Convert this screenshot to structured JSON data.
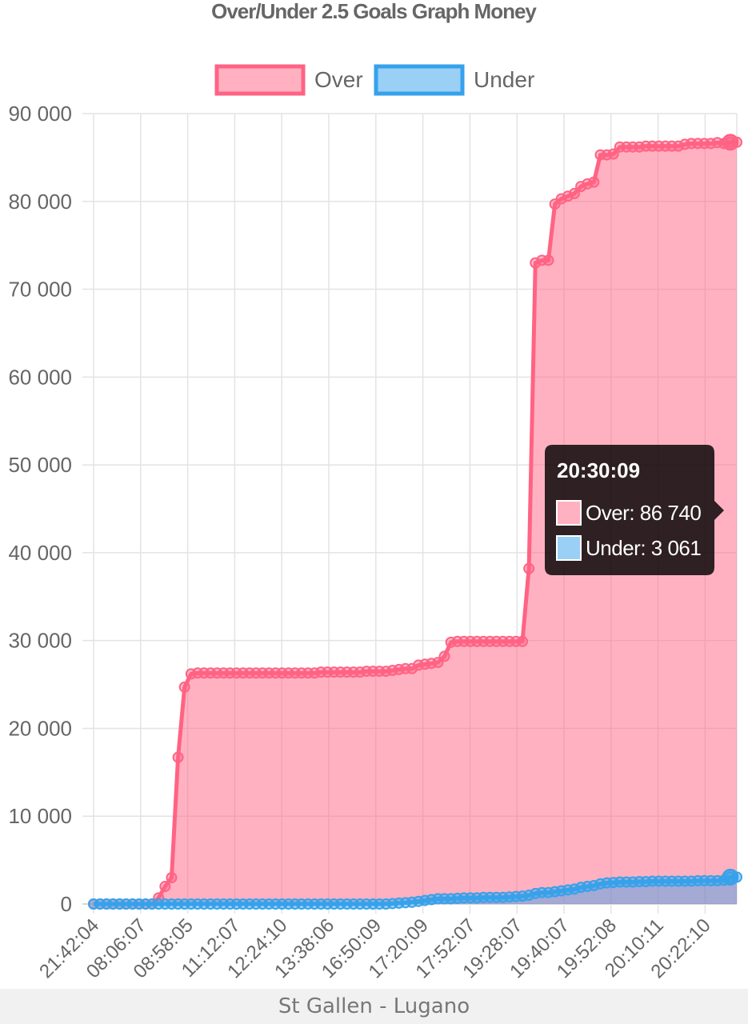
{
  "chart_data": {
    "type": "area",
    "title": "Over/Under 2.5 Goals Graph Money",
    "y_tick_labels": [
      "0",
      "10 000",
      "20 000",
      "30 000",
      "40 000",
      "50 000",
      "60 000",
      "70 000",
      "80 000",
      "90 000"
    ],
    "x_tick_labels": [
      "21:42:04",
      "08:06:07",
      "08:58:05",
      "11:12:07",
      "12:24:10",
      "13:38:06",
      "16:50:09",
      "17:20:09",
      "17:52:07",
      "19:28:07",
      "19:40:07",
      "19:52:08",
      "20:10:11",
      "20:22:10"
    ],
    "ylim": [
      0,
      90000
    ],
    "grid": true,
    "legend_position": "top",
    "series": [
      {
        "name": "Over",
        "color": "#ff6384",
        "values": [
          0,
          0,
          0,
          0,
          0,
          0,
          0,
          0,
          0,
          0,
          700,
          2000,
          3000,
          16700,
          24700,
          26200,
          26300,
          26300,
          26300,
          26300,
          26300,
          26300,
          26300,
          26300,
          26300,
          26300,
          26300,
          26300,
          26300,
          26300,
          26300,
          26300,
          26300,
          26300,
          26300,
          26400,
          26400,
          26400,
          26400,
          26400,
          26400,
          26400,
          26500,
          26500,
          26500,
          26500,
          26600,
          26700,
          26800,
          26800,
          27200,
          27300,
          27400,
          27500,
          28200,
          29800,
          29900,
          29900,
          29900,
          29900,
          29900,
          29900,
          29900,
          29900,
          29900,
          29900,
          29900,
          38200,
          73000,
          73300,
          73300,
          79700,
          80300,
          80600,
          80900,
          81700,
          82000,
          82200,
          85300,
          85300,
          85400,
          86200,
          86200,
          86200,
          86200,
          86300,
          86300,
          86300,
          86300,
          86300,
          86300,
          86500,
          86600,
          86600,
          86600,
          86600,
          86700,
          86600,
          86740,
          86740
        ]
      },
      {
        "name": "Under",
        "color": "#36a2eb",
        "values": [
          0,
          0,
          0,
          0,
          0,
          0,
          0,
          0,
          0,
          0,
          0,
          0,
          0,
          0,
          0,
          0,
          0,
          0,
          0,
          0,
          0,
          0,
          0,
          0,
          0,
          0,
          0,
          0,
          0,
          0,
          0,
          0,
          0,
          0,
          0,
          0,
          0,
          0,
          0,
          0,
          0,
          0,
          0,
          0,
          0,
          0,
          50,
          100,
          150,
          200,
          300,
          400,
          500,
          600,
          600,
          600,
          650,
          700,
          700,
          700,
          750,
          750,
          750,
          750,
          800,
          850,
          900,
          1000,
          1200,
          1300,
          1300,
          1400,
          1500,
          1600,
          1700,
          1900,
          2000,
          2100,
          2300,
          2400,
          2450,
          2500,
          2500,
          2500,
          2550,
          2550,
          2600,
          2600,
          2600,
          2600,
          2600,
          2600,
          2600,
          2650,
          2650,
          2650,
          2650,
          2700,
          3061,
          3061
        ]
      }
    ],
    "tooltip": {
      "title": "20:30:09",
      "over_label": "Over: 86 740",
      "under_label": "Under: 3 061"
    }
  },
  "footer": {
    "match": "St Gallen - Lugano"
  }
}
